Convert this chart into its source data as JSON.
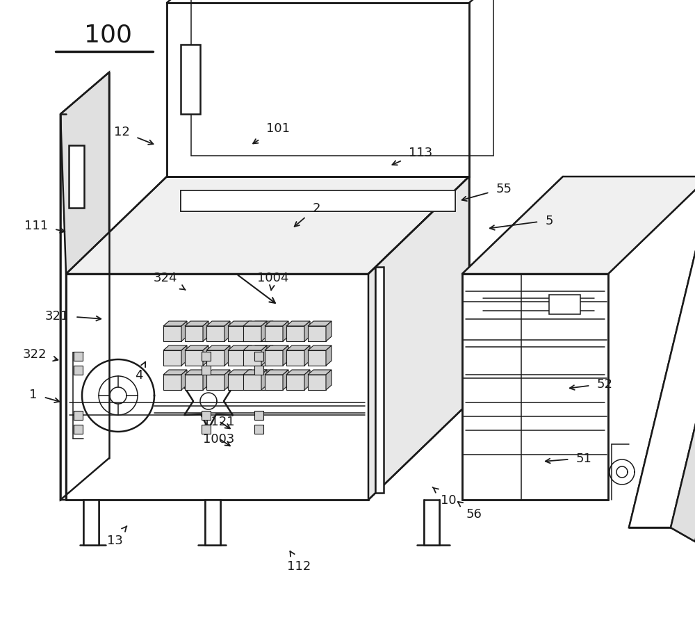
{
  "bg_color": "#ffffff",
  "line_color": "#1a1a1a",
  "label_color": "#1a1a1a",
  "title_label": "100",
  "figsize": [
    10.0,
    9.03
  ],
  "dpi": 100
}
